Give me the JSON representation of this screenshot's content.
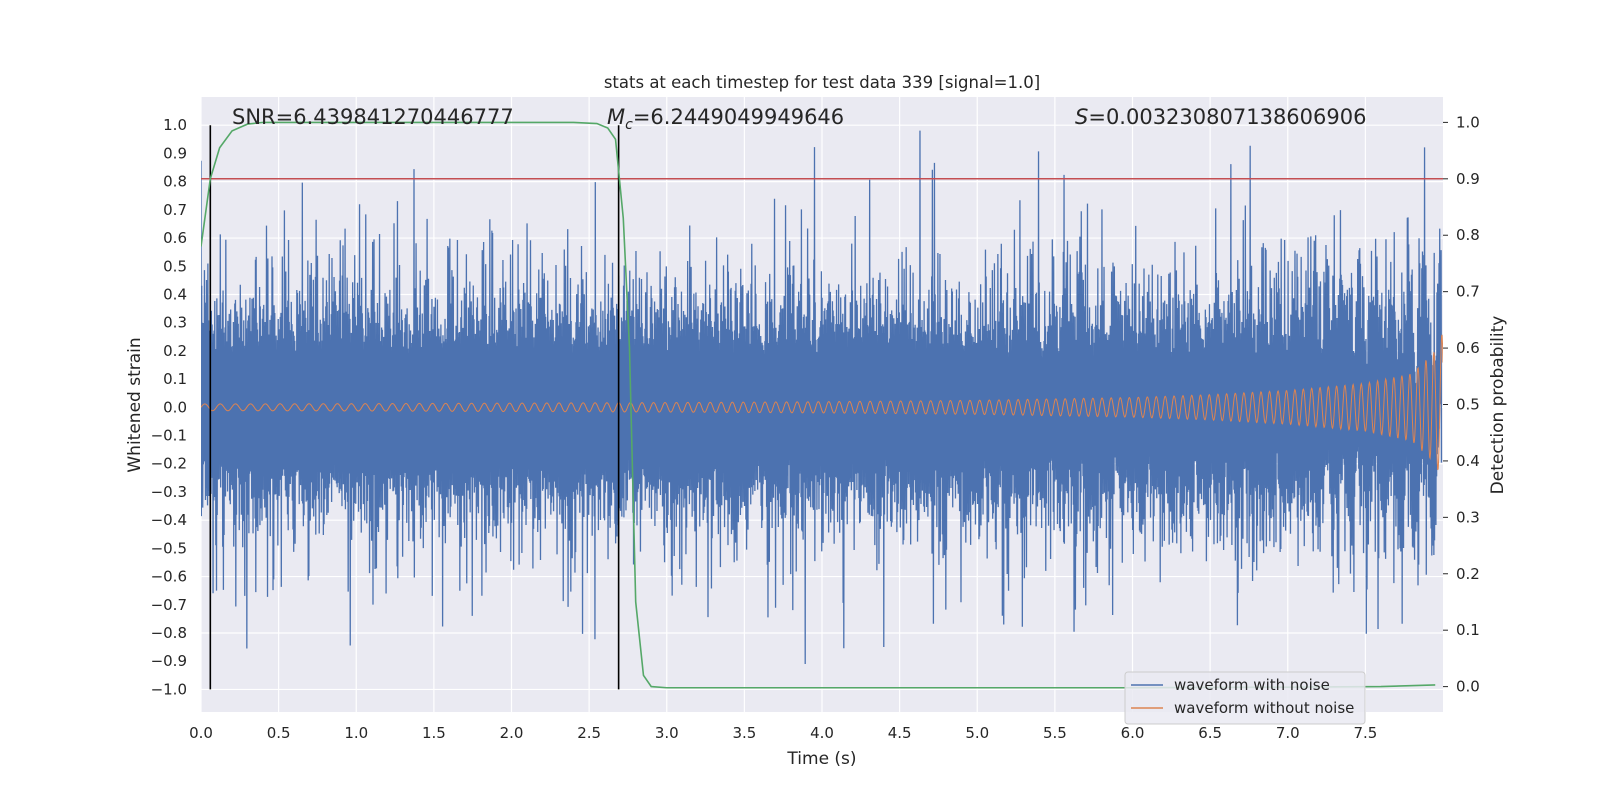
{
  "chart_data": {
    "type": "line",
    "title": "stats at each timestep for test data 339 [signal=1.0]",
    "xlabel": "Time (s)",
    "ylabel": "Whitened strain",
    "y2label": "Detection probability",
    "xlim": [
      0.0,
      8.0
    ],
    "ylim": [
      -1.08,
      1.1
    ],
    "y2lim": [
      -0.045,
      1.045
    ],
    "xticks": [
      0.0,
      0.5,
      1.0,
      1.5,
      2.0,
      2.5,
      3.0,
      3.5,
      4.0,
      4.5,
      5.0,
      5.5,
      6.0,
      6.5,
      7.0,
      7.5
    ],
    "xtick_labels": [
      "0.0",
      "0.5",
      "1.0",
      "1.5",
      "2.0",
      "2.5",
      "3.0",
      "3.5",
      "4.0",
      "4.5",
      "5.0",
      "5.5",
      "6.0",
      "6.5",
      "7.0",
      "7.5"
    ],
    "yticks": [
      1.0,
      0.9,
      0.8,
      0.7,
      0.6,
      0.5,
      0.4,
      0.3,
      0.2,
      0.1,
      0.0,
      -0.1,
      -0.2,
      -0.3,
      -0.4,
      -0.5,
      -0.6,
      -0.7,
      -0.8,
      -0.9,
      -1.0
    ],
    "ytick_labels": [
      "1.0",
      "0.9",
      "0.8",
      "0.7",
      "0.6",
      "0.5",
      "0.4",
      "0.3",
      "0.2",
      "0.1",
      "0.0",
      "−0.1",
      "−0.2",
      "−0.3",
      "−0.4",
      "−0.5",
      "−0.6",
      "−0.7",
      "−0.8",
      "−0.9",
      "−1.0"
    ],
    "y2ticks": [
      1.0,
      0.9,
      0.8,
      0.7,
      0.6,
      0.5,
      0.4,
      0.3,
      0.2,
      0.1,
      0.0
    ],
    "y2tick_labels": [
      "1.0",
      "0.9",
      "0.8",
      "0.7",
      "0.6",
      "0.5",
      "0.4",
      "0.3",
      "0.2",
      "0.1",
      "0.0"
    ],
    "annotations": {
      "snr_label": "SNR=6.439841270446777",
      "mc_symbol": "M",
      "mc_sub": "c",
      "mc_value": "=6.2449049949646",
      "s_symbol": "S",
      "s_value": "=0.003230807138606906"
    },
    "threshold": {
      "value": 0.9,
      "axis": "right",
      "color": "#c44e52"
    },
    "vlines": [
      {
        "x": 0.06,
        "color": "#000000"
      },
      {
        "x": 2.69,
        "color": "#000000"
      }
    ],
    "series": [
      {
        "name": "waveform with noise",
        "color": "#4c72b0",
        "axis": "left",
        "description": "dense whitened strain; envelope between about -1.0 and 1.0 with typical band about ±0.3"
      },
      {
        "name": "waveform without noise",
        "color": "#dd8452",
        "axis": "left",
        "envelope_x": [
          0.0,
          1.0,
          2.0,
          3.0,
          4.0,
          5.0,
          6.0,
          6.5,
          7.0,
          7.5,
          7.8,
          7.95,
          8.0
        ],
        "envelope_amp": [
          0.012,
          0.013,
          0.015,
          0.017,
          0.02,
          0.025,
          0.035,
          0.045,
          0.06,
          0.085,
          0.12,
          0.2,
          0.27
        ]
      },
      {
        "name": "detection probability",
        "color": "#55a868",
        "axis": "right",
        "x": [
          0.0,
          0.06,
          0.12,
          0.2,
          0.3,
          0.4,
          0.6,
          1.0,
          2.0,
          2.4,
          2.55,
          2.62,
          2.67,
          2.72,
          2.76,
          2.8,
          2.85,
          2.9,
          3.0,
          4.0,
          5.0,
          6.0,
          7.0,
          7.6,
          7.95
        ],
        "y": [
          0.78,
          0.9,
          0.955,
          0.985,
          0.997,
          1.0,
          1.0,
          1.0,
          1.0,
          1.0,
          0.998,
          0.99,
          0.97,
          0.83,
          0.6,
          0.15,
          0.02,
          0.0,
          -0.002,
          -0.002,
          -0.002,
          -0.002,
          -0.001,
          0.0,
          0.003
        ]
      }
    ],
    "legend": {
      "position": "lower-right",
      "entries": [
        {
          "label": "waveform with noise",
          "color": "#4c72b0"
        },
        {
          "label": "waveform without noise",
          "color": "#dd8452"
        }
      ]
    },
    "style": {
      "background": "#eaeaf2",
      "grid": "#ffffff"
    }
  }
}
